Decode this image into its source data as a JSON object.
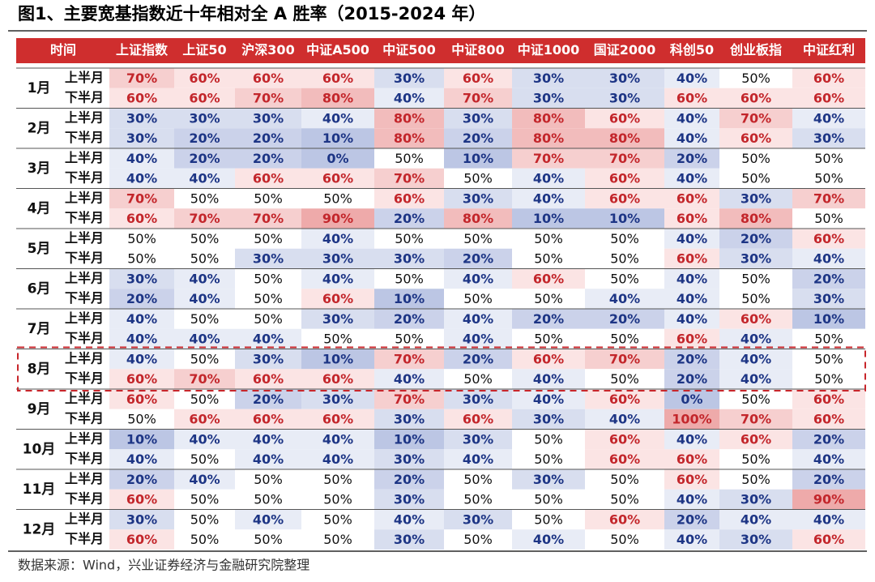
{
  "title": "图1、主要宽基指数近十年相对全 A 胜率（2015-2024 年）",
  "table": {
    "header": [
      "时间",
      "上证指数",
      "上证50",
      "沪深300",
      "中证A500",
      "中证500",
      "中证800",
      "中证1000",
      "国证2000",
      "科创50",
      "创业板指",
      "中证红利"
    ],
    "rows": [
      {
        "month": "1月",
        "halves": [
          {
            "label": "上半月",
            "cells": [
              "70%",
              "60%",
              "60%",
              "60%",
              "30%",
              "60%",
              "30%",
              "30%",
              "40%",
              "50%",
              "60%"
            ]
          },
          {
            "label": "下半月",
            "cells": [
              "60%",
              "60%",
              "70%",
              "80%",
              "40%",
              "70%",
              "30%",
              "30%",
              "60%",
              "60%",
              "60%"
            ]
          }
        ]
      },
      {
        "month": "2月",
        "halves": [
          {
            "label": "上半月",
            "cells": [
              "30%",
              "30%",
              "30%",
              "40%",
              "80%",
              "30%",
              "80%",
              "60%",
              "40%",
              "70%",
              "40%"
            ]
          },
          {
            "label": "下半月",
            "cells": [
              "30%",
              "20%",
              "20%",
              "10%",
              "80%",
              "20%",
              "80%",
              "80%",
              "40%",
              "60%",
              "30%"
            ]
          }
        ]
      },
      {
        "month": "3月",
        "halves": [
          {
            "label": "上半月",
            "cells": [
              "40%",
              "20%",
              "20%",
              "0%",
              "50%",
              "10%",
              "70%",
              "70%",
              "20%",
              "50%",
              "50%"
            ]
          },
          {
            "label": "下半月",
            "cells": [
              "40%",
              "40%",
              "60%",
              "60%",
              "70%",
              "50%",
              "40%",
              "60%",
              "40%",
              "50%",
              "50%"
            ]
          }
        ]
      },
      {
        "month": "4月",
        "halves": [
          {
            "label": "上半月",
            "cells": [
              "70%",
              "50%",
              "50%",
              "50%",
              "60%",
              "30%",
              "40%",
              "60%",
              "60%",
              "30%",
              "70%"
            ]
          },
          {
            "label": "下半月",
            "cells": [
              "60%",
              "70%",
              "70%",
              "90%",
              "20%",
              "80%",
              "10%",
              "10%",
              "60%",
              "80%",
              "50%"
            ]
          }
        ]
      },
      {
        "month": "5月",
        "halves": [
          {
            "label": "上半月",
            "cells": [
              "50%",
              "50%",
              "50%",
              "40%",
              "50%",
              "50%",
              "50%",
              "50%",
              "40%",
              "20%",
              "60%"
            ]
          },
          {
            "label": "下半月",
            "cells": [
              "50%",
              "50%",
              "30%",
              "30%",
              "30%",
              "20%",
              "50%",
              "50%",
              "60%",
              "30%",
              "40%"
            ]
          }
        ]
      },
      {
        "month": "6月",
        "halves": [
          {
            "label": "上半月",
            "cells": [
              "30%",
              "40%",
              "50%",
              "40%",
              "50%",
              "40%",
              "60%",
              "50%",
              "40%",
              "50%",
              "20%"
            ]
          },
          {
            "label": "下半月",
            "cells": [
              "20%",
              "40%",
              "50%",
              "60%",
              "10%",
              "50%",
              "50%",
              "40%",
              "40%",
              "50%",
              "30%"
            ]
          }
        ]
      },
      {
        "month": "7月",
        "halves": [
          {
            "label": "上半月",
            "cells": [
              "40%",
              "50%",
              "50%",
              "30%",
              "20%",
              "40%",
              "20%",
              "20%",
              "40%",
              "60%",
              "10%"
            ]
          },
          {
            "label": "下半月",
            "cells": [
              "40%",
              "40%",
              "40%",
              "50%",
              "50%",
              "40%",
              "50%",
              "50%",
              "60%",
              "40%",
              "50%"
            ]
          }
        ]
      },
      {
        "month": "8月",
        "halves": [
          {
            "label": "上半月",
            "cells": [
              "40%",
              "50%",
              "30%",
              "10%",
              "70%",
              "20%",
              "60%",
              "70%",
              "20%",
              "40%",
              "50%"
            ]
          },
          {
            "label": "下半月",
            "cells": [
              "60%",
              "70%",
              "60%",
              "60%",
              "40%",
              "50%",
              "40%",
              "50%",
              "20%",
              "40%",
              "50%"
            ]
          }
        ]
      },
      {
        "month": "9月",
        "halves": [
          {
            "label": "上半月",
            "cells": [
              "60%",
              "50%",
              "20%",
              "30%",
              "70%",
              "30%",
              "40%",
              "60%",
              "0%",
              "50%",
              "60%"
            ]
          },
          {
            "label": "下半月",
            "cells": [
              "50%",
              "60%",
              "60%",
              "60%",
              "30%",
              "60%",
              "30%",
              "40%",
              "100%",
              "70%",
              "60%"
            ]
          }
        ]
      },
      {
        "month": "10月",
        "halves": [
          {
            "label": "上半月",
            "cells": [
              "10%",
              "40%",
              "40%",
              "40%",
              "10%",
              "30%",
              "50%",
              "60%",
              "40%",
              "60%",
              "20%"
            ]
          },
          {
            "label": "下半月",
            "cells": [
              "40%",
              "50%",
              "40%",
              "40%",
              "30%",
              "40%",
              "50%",
              "60%",
              "60%",
              "50%",
              "40%"
            ]
          }
        ]
      },
      {
        "month": "11月",
        "halves": [
          {
            "label": "上半月",
            "cells": [
              "20%",
              "40%",
              "50%",
              "50%",
              "20%",
              "50%",
              "30%",
              "50%",
              "60%",
              "50%",
              "20%"
            ]
          },
          {
            "label": "下半月",
            "cells": [
              "60%",
              "50%",
              "50%",
              "50%",
              "30%",
              "50%",
              "50%",
              "50%",
              "40%",
              "30%",
              "90%"
            ]
          }
        ]
      },
      {
        "month": "12月",
        "halves": [
          {
            "label": "上半月",
            "cells": [
              "30%",
              "50%",
              "40%",
              "50%",
              "40%",
              "30%",
              "50%",
              "60%",
              "20%",
              "40%",
              "40%"
            ]
          },
          {
            "label": "下半月",
            "cells": [
              "60%",
              "50%",
              "50%",
              "50%",
              "30%",
              "50%",
              "40%",
              "50%",
              "40%",
              "30%",
              "60%"
            ]
          }
        ]
      }
    ]
  },
  "source": "数据来源：Wind，兴业证券经济与金融研究院整理"
}
